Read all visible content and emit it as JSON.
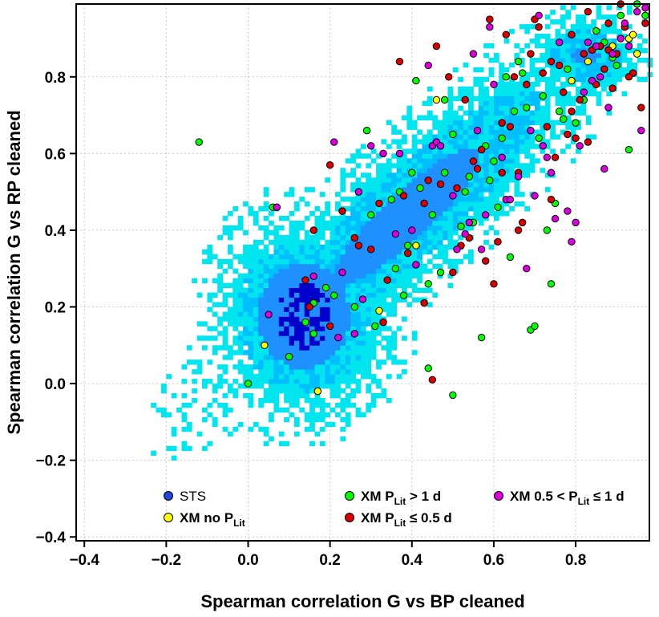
{
  "chart_data": {
    "type": "scatter",
    "xlabel": "Spearman correlation G vs BP cleaned",
    "ylabel": "Spearman correlation G vs RP cleaned",
    "xlim": [
      -0.42,
      0.98
    ],
    "ylim": [
      -0.41,
      0.99
    ],
    "xticks": [
      "−0.4",
      "−0.2",
      "0.0",
      "0.2",
      "0.4",
      "0.6",
      "0.8"
    ],
    "yticks": [
      "−0.4",
      "−0.2",
      "0.0",
      "0.2",
      "0.4",
      "0.6",
      "0.8"
    ],
    "xtick_values": [
      -0.4,
      -0.2,
      0.0,
      0.2,
      0.4,
      0.6,
      0.8
    ],
    "ytick_values": [
      -0.4,
      -0.2,
      0.0,
      0.2,
      0.4,
      0.6,
      0.8
    ],
    "grid": true,
    "legend_placement": "bottom",
    "background": {
      "name": "STS",
      "kind": "density-2d-histogram",
      "colors": [
        "#00e5ee",
        "#00bfff",
        "#1e90ff",
        "#0000cd"
      ]
    },
    "series": [
      {
        "name": "STS",
        "color": "#2244dd",
        "points": []
      },
      {
        "name": "XM no P_Lit",
        "color": "#ffff00",
        "points": [
          [
            0.04,
            0.1
          ],
          [
            0.17,
            -0.02
          ],
          [
            0.32,
            0.19
          ],
          [
            0.41,
            0.36
          ],
          [
            0.46,
            0.74
          ],
          [
            0.79,
            0.79
          ],
          [
            0.89,
            0.88
          ],
          [
            0.93,
            0.9
          ],
          [
            0.92,
            0.93
          ],
          [
            0.95,
            0.86
          ],
          [
            0.72,
            0.75
          ],
          [
            0.83,
            0.84
          ],
          [
            0.94,
            0.91
          ]
        ]
      },
      {
        "name": "XM P_Lit > 1 d",
        "color": "#00ff00",
        "points": [
          [
            -0.12,
            0.63
          ],
          [
            0.0,
            0.0
          ],
          [
            0.06,
            0.46
          ],
          [
            0.07,
            0.46
          ],
          [
            0.1,
            0.07
          ],
          [
            0.14,
            0.16
          ],
          [
            0.16,
            0.13
          ],
          [
            0.16,
            0.21
          ],
          [
            0.19,
            0.25
          ],
          [
            0.21,
            0.23
          ],
          [
            0.26,
            0.2
          ],
          [
            0.29,
            0.66
          ],
          [
            0.31,
            0.15
          ],
          [
            0.35,
            0.48
          ],
          [
            0.37,
            0.5
          ],
          [
            0.39,
            0.36
          ],
          [
            0.4,
            0.55
          ],
          [
            0.41,
            0.79
          ],
          [
            0.42,
            0.51
          ],
          [
            0.44,
            0.04
          ],
          [
            0.45,
            0.44
          ],
          [
            0.47,
            0.29
          ],
          [
            0.48,
            0.74
          ],
          [
            0.5,
            -0.03
          ],
          [
            0.5,
            0.65
          ],
          [
            0.52,
            0.41
          ],
          [
            0.54,
            0.54
          ],
          [
            0.55,
            0.42
          ],
          [
            0.57,
            0.12
          ],
          [
            0.59,
            0.53
          ],
          [
            0.6,
            0.58
          ],
          [
            0.61,
            0.46
          ],
          [
            0.62,
            0.64
          ],
          [
            0.65,
            0.71
          ],
          [
            0.67,
            0.81
          ],
          [
            0.68,
            0.72
          ],
          [
            0.69,
            0.14
          ],
          [
            0.7,
            0.15
          ],
          [
            0.71,
            0.64
          ],
          [
            0.72,
            0.75
          ],
          [
            0.73,
            0.4
          ],
          [
            0.74,
            0.26
          ],
          [
            0.75,
            0.47
          ],
          [
            0.77,
            0.69
          ],
          [
            0.78,
            0.82
          ],
          [
            0.8,
            0.68
          ],
          [
            0.82,
            0.74
          ],
          [
            0.84,
            0.79
          ],
          [
            0.87,
            0.89
          ],
          [
            0.89,
            0.85
          ],
          [
            0.91,
            0.96
          ],
          [
            0.93,
            0.61
          ],
          [
            0.95,
            0.99
          ],
          [
            0.97,
            0.96
          ],
          [
            0.3,
            0.44
          ],
          [
            0.36,
            0.3
          ],
          [
            0.44,
            0.26
          ],
          [
            0.53,
            0.5
          ],
          [
            0.63,
            0.8
          ],
          [
            0.58,
            0.62
          ],
          [
            0.66,
            0.84
          ],
          [
            0.76,
            0.71
          ],
          [
            0.85,
            0.92
          ],
          [
            0.9,
            0.83
          ],
          [
            0.48,
            0.55
          ],
          [
            0.38,
            0.23
          ],
          [
            0.64,
            0.33
          ]
        ]
      },
      {
        "name": "XM P_Lit ≤ 0.5 d",
        "color": "#dd0000",
        "points": [
          [
            0.14,
            0.27
          ],
          [
            0.15,
            0.2
          ],
          [
            0.16,
            0.4
          ],
          [
            0.2,
            0.15
          ],
          [
            0.2,
            0.57
          ],
          [
            0.23,
            0.45
          ],
          [
            0.26,
            0.38
          ],
          [
            0.27,
            0.36
          ],
          [
            0.3,
            0.35
          ],
          [
            0.32,
            0.47
          ],
          [
            0.34,
            0.27
          ],
          [
            0.37,
            0.84
          ],
          [
            0.38,
            0.49
          ],
          [
            0.39,
            0.34
          ],
          [
            0.43,
            0.47
          ],
          [
            0.44,
            0.53
          ],
          [
            0.45,
            0.01
          ],
          [
            0.46,
            0.88
          ],
          [
            0.47,
            0.52
          ],
          [
            0.49,
            0.8
          ],
          [
            0.5,
            0.29
          ],
          [
            0.52,
            0.36
          ],
          [
            0.53,
            0.74
          ],
          [
            0.54,
            0.38
          ],
          [
            0.55,
            0.58
          ],
          [
            0.57,
            0.61
          ],
          [
            0.58,
            0.32
          ],
          [
            0.59,
            0.95
          ],
          [
            0.6,
            0.26
          ],
          [
            0.61,
            0.37
          ],
          [
            0.62,
            0.55
          ],
          [
            0.63,
            0.91
          ],
          [
            0.64,
            0.67
          ],
          [
            0.65,
            0.8
          ],
          [
            0.66,
            0.55
          ],
          [
            0.67,
            0.42
          ],
          [
            0.68,
            0.78
          ],
          [
            0.69,
            0.86
          ],
          [
            0.7,
            0.95
          ],
          [
            0.71,
            0.93
          ],
          [
            0.72,
            0.81
          ],
          [
            0.73,
            0.67
          ],
          [
            0.74,
            0.48
          ],
          [
            0.75,
            0.59
          ],
          [
            0.76,
            0.83
          ],
          [
            0.77,
            0.76
          ],
          [
            0.78,
            0.65
          ],
          [
            0.79,
            0.91
          ],
          [
            0.8,
            0.64
          ],
          [
            0.81,
            0.74
          ],
          [
            0.82,
            0.86
          ],
          [
            0.83,
            0.63
          ],
          [
            0.84,
            0.87
          ],
          [
            0.85,
            0.78
          ],
          [
            0.86,
            0.88
          ],
          [
            0.87,
            0.82
          ],
          [
            0.88,
            0.94
          ],
          [
            0.89,
            0.77
          ],
          [
            0.9,
            0.86
          ],
          [
            0.91,
            0.99
          ],
          [
            0.92,
            0.93
          ],
          [
            0.94,
            0.81
          ],
          [
            0.96,
            0.72
          ],
          [
            0.97,
            0.94
          ],
          [
            0.33,
            0.16
          ],
          [
            0.43,
            0.21
          ],
          [
            0.51,
            0.51
          ],
          [
            0.56,
            0.56
          ],
          [
            0.62,
            0.68
          ],
          [
            0.66,
            0.4
          ],
          [
            0.74,
            0.84
          ],
          [
            0.79,
            0.71
          ],
          [
            0.83,
            0.97
          ],
          [
            0.88,
            0.87
          ],
          [
            0.93,
            0.8
          ]
        ]
      },
      {
        "name": "XM 0.5 < P_Lit ≤ 1 d",
        "color": "#dd00dd",
        "points": [
          [
            0.05,
            0.18
          ],
          [
            0.07,
            0.46
          ],
          [
            0.16,
            0.28
          ],
          [
            0.21,
            0.63
          ],
          [
            0.22,
            0.12
          ],
          [
            0.23,
            0.29
          ],
          [
            0.26,
            0.13
          ],
          [
            0.27,
            0.5
          ],
          [
            0.28,
            0.22
          ],
          [
            0.3,
            0.62
          ],
          [
            0.33,
            0.6
          ],
          [
            0.36,
            0.39
          ],
          [
            0.37,
            0.6
          ],
          [
            0.4,
            0.4
          ],
          [
            0.41,
            0.31
          ],
          [
            0.44,
            0.83
          ],
          [
            0.45,
            0.62
          ],
          [
            0.46,
            0.63
          ],
          [
            0.47,
            0.62
          ],
          [
            0.5,
            0.49
          ],
          [
            0.51,
            0.35
          ],
          [
            0.54,
            0.42
          ],
          [
            0.55,
            0.86
          ],
          [
            0.56,
            0.66
          ],
          [
            0.57,
            0.35
          ],
          [
            0.58,
            0.44
          ],
          [
            0.59,
            0.93
          ],
          [
            0.6,
            0.78
          ],
          [
            0.63,
            0.48
          ],
          [
            0.64,
            0.48
          ],
          [
            0.66,
            0.54
          ],
          [
            0.68,
            0.3
          ],
          [
            0.7,
            0.49
          ],
          [
            0.71,
            0.96
          ],
          [
            0.72,
            0.62
          ],
          [
            0.74,
            0.55
          ],
          [
            0.75,
            0.43
          ],
          [
            0.76,
            0.89
          ],
          [
            0.78,
            0.45
          ],
          [
            0.79,
            0.37
          ],
          [
            0.8,
            0.42
          ],
          [
            0.81,
            0.62
          ],
          [
            0.82,
            0.76
          ],
          [
            0.83,
            0.89
          ],
          [
            0.84,
            0.79
          ],
          [
            0.85,
            0.88
          ],
          [
            0.86,
            0.8
          ],
          [
            0.87,
            0.56
          ],
          [
            0.88,
            0.72
          ],
          [
            0.89,
            0.86
          ],
          [
            0.91,
            0.9
          ],
          [
            0.92,
            0.94
          ],
          [
            0.93,
            0.88
          ],
          [
            0.95,
            0.97
          ],
          [
            0.96,
            0.66
          ],
          [
            0.97,
            0.98
          ],
          [
            0.69,
            0.66
          ],
          [
            0.73,
            0.59
          ],
          [
            0.62,
            0.59
          ],
          [
            0.53,
            0.39
          ]
        ]
      }
    ],
    "legend": [
      {
        "label": "STS",
        "color": "#2244dd",
        "bold": false
      },
      {
        "label": "XM no P",
        "sub": "Lit",
        "color": "#ffff00",
        "bold": true
      },
      {
        "label": "XM P",
        "sub": "Lit",
        "suffix": " > 1 d",
        "color": "#00ff00",
        "bold": true
      },
      {
        "label": "XM P",
        "sub": "Lit",
        "suffix": " ≤ 0.5 d",
        "color": "#dd0000",
        "bold": true
      },
      {
        "label": "XM 0.5 < P",
        "sub": "Lit",
        "suffix": " ≤ 1 d",
        "color": "#dd00dd",
        "bold": true
      }
    ]
  }
}
